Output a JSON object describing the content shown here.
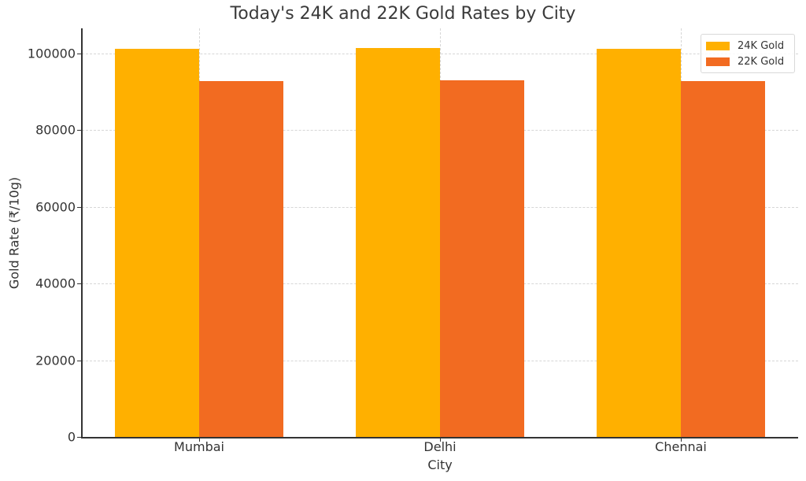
{
  "chart_data": {
    "type": "bar",
    "title": "Today's 24K and 22K Gold Rates by City",
    "xlabel": "City",
    "ylabel": "Gold Rate (₹/10g)",
    "categories": [
      "Mumbai",
      "Delhi",
      "Chennai"
    ],
    "series": [
      {
        "name": "24K Gold",
        "color": "#FFB000",
        "values": [
          101240,
          101390,
          101240
        ]
      },
      {
        "name": "22K Gold",
        "color": "#F26B21",
        "values": [
          92800,
          92950,
          92800
        ]
      }
    ],
    "ylim": [
      0,
      106500
    ],
    "yticks": [
      0,
      20000,
      40000,
      60000,
      80000,
      100000
    ],
    "ytick_labels": [
      "0",
      "20000",
      "40000",
      "60000",
      "80000",
      "100000"
    ],
    "grid": true,
    "legend_position": "upper right"
  }
}
